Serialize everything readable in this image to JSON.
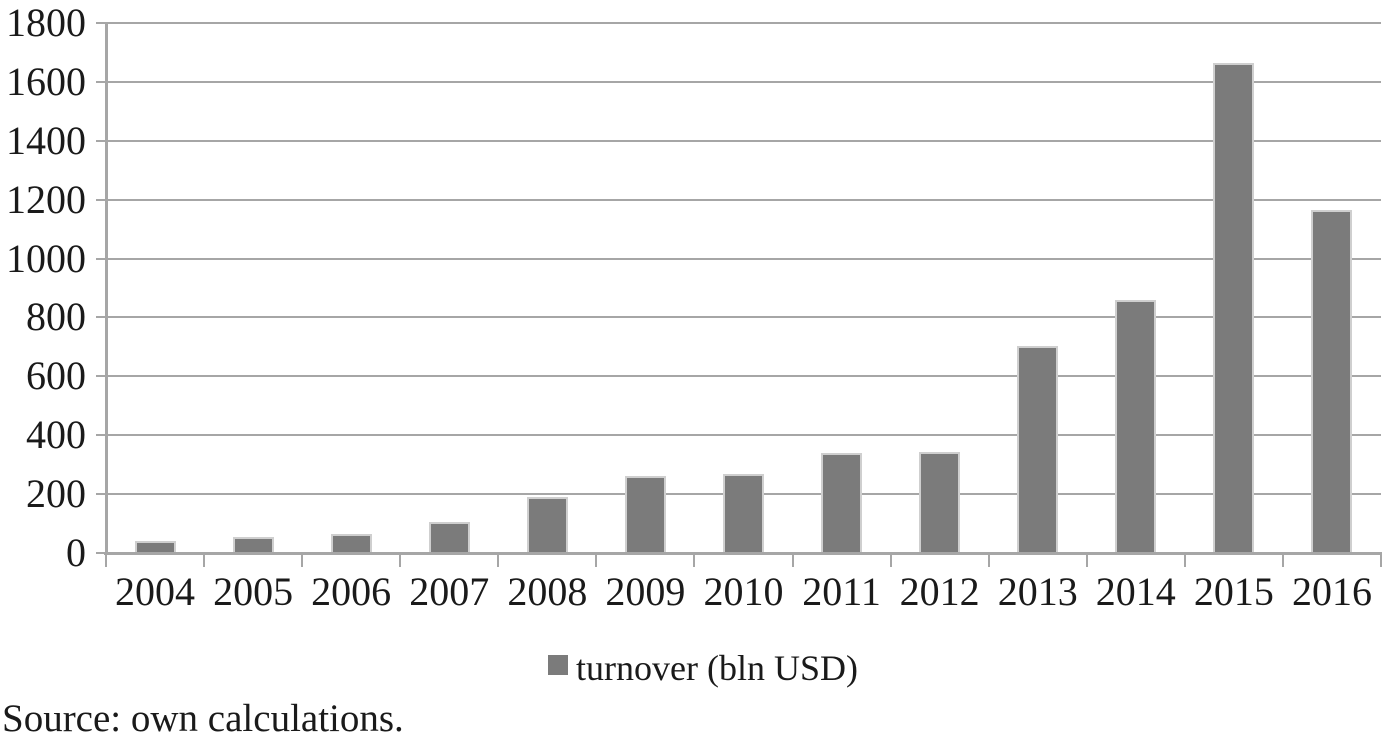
{
  "figure": {
    "source_note": "Source: own calculations."
  },
  "chart_data": {
    "type": "bar",
    "title": "",
    "xlabel": "",
    "ylabel": "",
    "categories": [
      "2004",
      "2005",
      "2006",
      "2007",
      "2008",
      "2009",
      "2010",
      "2011",
      "2012",
      "2013",
      "2014",
      "2015",
      "2016"
    ],
    "series": [
      {
        "name": "turnover (bln USD)",
        "values": [
          40,
          54,
          66,
          105,
          190,
          260,
          268,
          338,
          343,
          702,
          860,
          1663,
          1164
        ]
      }
    ],
    "ylim": [
      0,
      1800
    ],
    "ytick_step": 200,
    "yticks": [
      0,
      200,
      400,
      600,
      800,
      1000,
      1200,
      1400,
      1600,
      1800
    ],
    "grid": "horizontal",
    "legend_position": "bottom",
    "legend": [
      "turnover (bln USD)"
    ]
  },
  "colors": {
    "bar_fill": "#7b7b7b",
    "bar_border": "#cfcfcf",
    "gridline": "#a6a6a6",
    "axis_line": "#a6a6a6",
    "text": "#1a1a1a",
    "background": "#ffffff"
  }
}
